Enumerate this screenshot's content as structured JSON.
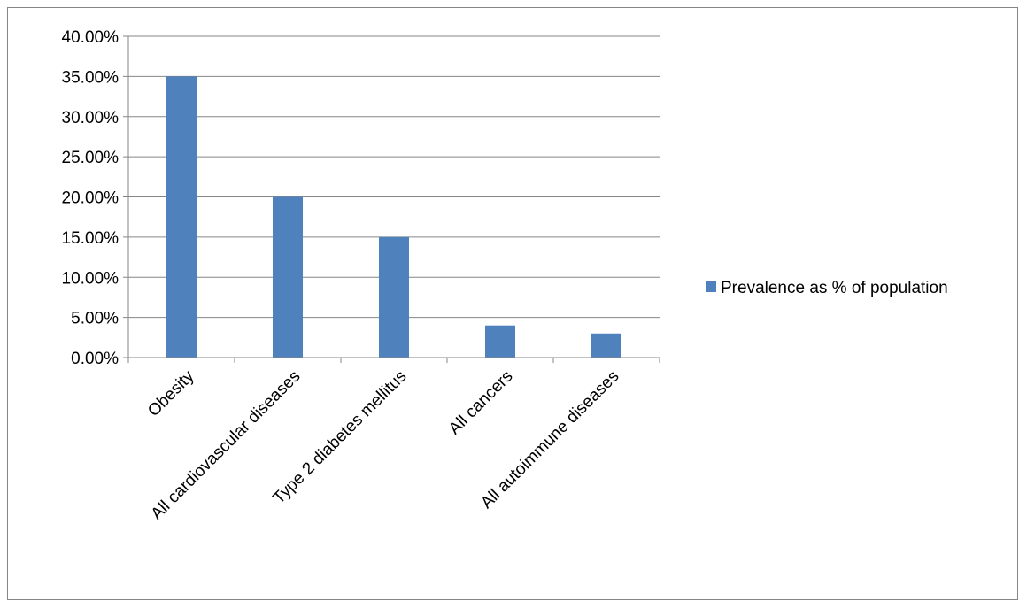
{
  "chart_data": {
    "type": "bar",
    "categories": [
      "Obesity",
      "All cardiovascular diseases",
      "Type 2 diabetes mellitus",
      "All cancers",
      "All autoimmune diseases"
    ],
    "series": [
      {
        "name": "Prevalence as % of population",
        "values": [
          0.35,
          0.2,
          0.15,
          0.04,
          0.03
        ],
        "color": "#4f81bd"
      }
    ],
    "ylim": [
      0,
      0.4
    ],
    "ytick_step": 0.05,
    "ytick_labels": [
      "0.00%",
      "5.00%",
      "10.00%",
      "15.00%",
      "20.00%",
      "25.00%",
      "30.00%",
      "35.00%",
      "40.00%"
    ],
    "title": "",
    "xlabel": "",
    "ylabel": "",
    "grid": true,
    "legend_position": "right"
  }
}
